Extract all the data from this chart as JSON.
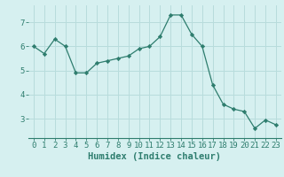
{
  "x": [
    0,
    1,
    2,
    3,
    4,
    5,
    6,
    7,
    8,
    9,
    10,
    11,
    12,
    13,
    14,
    15,
    16,
    17,
    18,
    19,
    20,
    21,
    22,
    23
  ],
  "y": [
    6.0,
    5.7,
    6.3,
    6.0,
    4.9,
    4.9,
    5.3,
    5.4,
    5.5,
    5.6,
    5.9,
    6.0,
    6.4,
    7.3,
    7.3,
    6.5,
    6.0,
    4.4,
    3.6,
    3.4,
    3.3,
    2.6,
    2.95,
    2.75
  ],
  "line_color": "#2e7d6e",
  "marker": "D",
  "marker_size": 2.2,
  "bg_color": "#d6f0f0",
  "grid_color": "#b8dcdc",
  "xlabel": "Humidex (Indice chaleur)",
  "ylim": [
    2.2,
    7.7
  ],
  "xlim": [
    -0.5,
    23.5
  ],
  "yticks": [
    3,
    4,
    5,
    6,
    7
  ],
  "xticks": [
    0,
    1,
    2,
    3,
    4,
    5,
    6,
    7,
    8,
    9,
    10,
    11,
    12,
    13,
    14,
    15,
    16,
    17,
    18,
    19,
    20,
    21,
    22,
    23
  ],
  "tick_fontsize": 6.5,
  "xlabel_fontsize": 7.5
}
